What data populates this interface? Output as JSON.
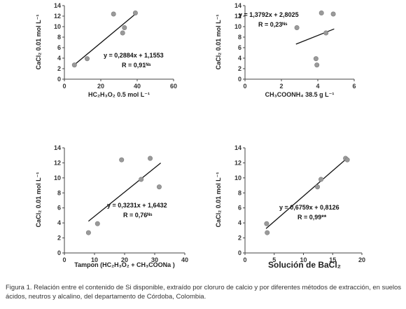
{
  "chart_data": [
    {
      "type": "scatter",
      "xlabel": "HC₂H₃O₂ 0.5 mol L⁻¹",
      "ylabel": "CaCl₂ 0.01 mol L⁻¹",
      "xlim": [
        0,
        60
      ],
      "ylim": [
        0,
        14
      ],
      "xticks": [
        "0",
        "20",
        "40",
        "60"
      ],
      "yticks": [
        "0",
        "2",
        "4",
        "6",
        "8",
        "10",
        "12",
        "14"
      ],
      "points": [
        {
          "x": 5.5,
          "y": 2.7
        },
        {
          "x": 12.5,
          "y": 3.9
        },
        {
          "x": 27,
          "y": 12.4
        },
        {
          "x": 32,
          "y": 8.8
        },
        {
          "x": 33,
          "y": 9.8
        },
        {
          "x": 39,
          "y": 12.6
        }
      ],
      "trendline": {
        "slope": 0.2884,
        "intercept": 1.1553,
        "x_range": [
          5,
          40
        ]
      },
      "equation": "y = 0,2884x + 1,1553",
      "r_label": "R = 0,91ᴺˢ"
    },
    {
      "type": "scatter",
      "xlabel": "CH₃COONH₄ 38.5 g L⁻¹",
      "ylabel": "CaCl₂ 0.01 mol L⁻¹",
      "xlim": [
        0,
        6
      ],
      "ylim": [
        0,
        14
      ],
      "xticks": [
        "0",
        "2",
        "4",
        "6"
      ],
      "yticks": [
        "0",
        "2",
        "4",
        "6",
        "8",
        "10",
        "12",
        "14"
      ],
      "points": [
        {
          "x": 2.85,
          "y": 9.8
        },
        {
          "x": 3.9,
          "y": 3.9
        },
        {
          "x": 3.95,
          "y": 2.7
        },
        {
          "x": 4.2,
          "y": 12.6
        },
        {
          "x": 4.45,
          "y": 8.8
        },
        {
          "x": 4.85,
          "y": 12.4
        }
      ],
      "trendline": {
        "slope": 1.3792,
        "intercept": 2.8025,
        "x_range": [
          2.8,
          4.9
        ]
      },
      "equation": "y = 1,3792x + 2,8025",
      "r_label": "R = 0,23ᴺˢ"
    },
    {
      "type": "scatter",
      "xlabel": "Tampon (HC₂H₃O₂ + CH₃COONa )",
      "ylabel": "CaCl₂ 0.01 mol L⁻¹",
      "xlim": [
        0,
        40
      ],
      "ylim": [
        0,
        14
      ],
      "xticks": [
        "0",
        "10",
        "20",
        "30",
        "40"
      ],
      "yticks": [
        "0",
        "2",
        "4",
        "6",
        "8",
        "10",
        "12",
        "14"
      ],
      "points": [
        {
          "x": 8,
          "y": 2.7
        },
        {
          "x": 11,
          "y": 3.9
        },
        {
          "x": 19,
          "y": 12.4
        },
        {
          "x": 25.5,
          "y": 9.8
        },
        {
          "x": 28.5,
          "y": 12.6
        },
        {
          "x": 31.5,
          "y": 8.8
        }
      ],
      "trendline": {
        "slope": 0.3231,
        "intercept": 1.6432,
        "x_range": [
          8,
          32
        ]
      },
      "equation": "y = 0,3231x + 1,6432",
      "r_label": "R = 0,76ᴺˢ"
    },
    {
      "type": "scatter",
      "xlabel": "Solución de BaCl₂",
      "ylabel": "CaCl₂ 0.01 mol L⁻¹",
      "xlim": [
        0,
        20
      ],
      "ylim": [
        0,
        14
      ],
      "xticks": [
        "0",
        "5",
        "10",
        "15",
        "20"
      ],
      "yticks": [
        "0",
        "2",
        "4",
        "6",
        "8",
        "10",
        "12",
        "14"
      ],
      "points": [
        {
          "x": 3.7,
          "y": 3.9
        },
        {
          "x": 3.8,
          "y": 2.7
        },
        {
          "x": 12.4,
          "y": 8.8
        },
        {
          "x": 13,
          "y": 9.8
        },
        {
          "x": 17.2,
          "y": 12.6
        },
        {
          "x": 17.5,
          "y": 12.4
        }
      ],
      "trendline": {
        "slope": 0.6759,
        "intercept": 0.8126,
        "x_range": [
          3.6,
          17.6
        ]
      },
      "equation": "y = 0,6759x + 0,8126",
      "r_label": "R = 0,99**"
    }
  ],
  "caption": "Figura 1. Relación entre el contenido de Si disponible, extraído por cloruro de calcio y por diferentes métodos de extracción, en suelos ácidos, neutros y alcalino, del departamento de Córdoba, Colombia.",
  "colors": {
    "point": "#9a9a9a",
    "line": "#111111",
    "axis": "#444444"
  }
}
